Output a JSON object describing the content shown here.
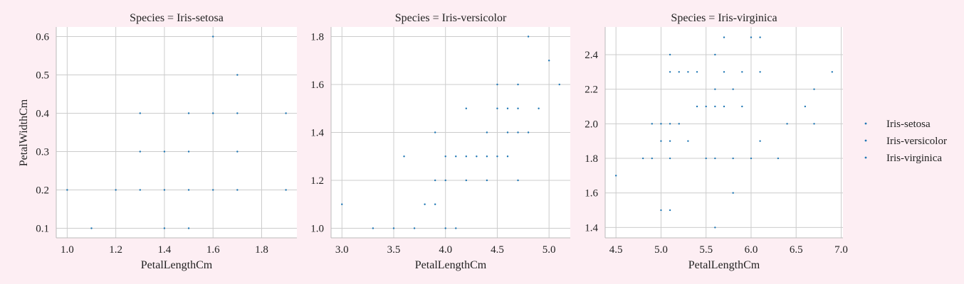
{
  "chart_data": {
    "type": "scatter",
    "facet_layout": "1x3",
    "grid": true,
    "legend_placement": "right",
    "ylabel": "PetalWidthCm",
    "legend": {
      "entries": [
        "Iris-setosa",
        "Iris-versicolor",
        "Iris-virginica"
      ],
      "colors": [
        "#1f77b4",
        "#1f77b4",
        "#1f77b4"
      ]
    },
    "colors": {
      "background": "#fdeef3",
      "plot_background": "#ffffff",
      "grid": "#cccccc",
      "point": "#1f77b4"
    },
    "panels": [
      {
        "title": "Species = Iris-setosa",
        "xlabel": "PetalLengthCm",
        "xlim": [
          0.955,
          1.945
        ],
        "ylim": [
          0.075,
          0.625
        ],
        "xticks": [
          "1.0",
          "1.2",
          "1.4",
          "1.6",
          "1.8"
        ],
        "yticks": [
          "0.1",
          "0.2",
          "0.3",
          "0.4",
          "0.5",
          "0.6"
        ],
        "points": [
          [
            1.0,
            0.2
          ],
          [
            1.1,
            0.1
          ],
          [
            1.2,
            0.2
          ],
          [
            1.3,
            0.2
          ],
          [
            1.3,
            0.3
          ],
          [
            1.3,
            0.4
          ],
          [
            1.4,
            0.1
          ],
          [
            1.4,
            0.2
          ],
          [
            1.4,
            0.3
          ],
          [
            1.5,
            0.1
          ],
          [
            1.5,
            0.2
          ],
          [
            1.5,
            0.3
          ],
          [
            1.5,
            0.4
          ],
          [
            1.6,
            0.2
          ],
          [
            1.6,
            0.4
          ],
          [
            1.6,
            0.6
          ],
          [
            1.7,
            0.2
          ],
          [
            1.7,
            0.3
          ],
          [
            1.7,
            0.4
          ],
          [
            1.7,
            0.5
          ],
          [
            1.9,
            0.2
          ],
          [
            1.9,
            0.4
          ]
        ]
      },
      {
        "title": "Species = Iris-versicolor",
        "xlabel": "PetalLengthCm",
        "xlim": [
          2.895,
          5.205
        ],
        "ylim": [
          0.96,
          1.84
        ],
        "xticks": [
          "3.0",
          "3.5",
          "4.0",
          "4.5",
          "5.0"
        ],
        "yticks": [
          "1.0",
          "1.2",
          "1.4",
          "1.6",
          "1.8"
        ],
        "points": [
          [
            3.0,
            1.1
          ],
          [
            3.3,
            1.0
          ],
          [
            3.5,
            1.0
          ],
          [
            3.6,
            1.3
          ],
          [
            3.7,
            1.0
          ],
          [
            3.8,
            1.1
          ],
          [
            3.9,
            1.1
          ],
          [
            3.9,
            1.2
          ],
          [
            3.9,
            1.4
          ],
          [
            4.0,
            1.0
          ],
          [
            4.0,
            1.2
          ],
          [
            4.0,
            1.3
          ],
          [
            4.1,
            1.0
          ],
          [
            4.1,
            1.3
          ],
          [
            4.2,
            1.2
          ],
          [
            4.2,
            1.3
          ],
          [
            4.2,
            1.5
          ],
          [
            4.3,
            1.3
          ],
          [
            4.4,
            1.2
          ],
          [
            4.4,
            1.3
          ],
          [
            4.4,
            1.4
          ],
          [
            4.5,
            1.3
          ],
          [
            4.5,
            1.5
          ],
          [
            4.5,
            1.6
          ],
          [
            4.6,
            1.3
          ],
          [
            4.6,
            1.4
          ],
          [
            4.6,
            1.5
          ],
          [
            4.7,
            1.2
          ],
          [
            4.7,
            1.4
          ],
          [
            4.7,
            1.5
          ],
          [
            4.7,
            1.6
          ],
          [
            4.8,
            1.4
          ],
          [
            4.8,
            1.8
          ],
          [
            4.9,
            1.5
          ],
          [
            5.0,
            1.7
          ],
          [
            5.1,
            1.6
          ]
        ]
      },
      {
        "title": "Species = Iris-virginica",
        "xlabel": "PetalLengthCm",
        "xlim": [
          4.38,
          7.02
        ],
        "ylim": [
          1.34,
          2.56
        ],
        "xticks": [
          "4.5",
          "5.0",
          "5.5",
          "6.0",
          "6.5",
          "7.0"
        ],
        "yticks": [
          "1.4",
          "1.6",
          "1.8",
          "2.0",
          "2.2",
          "2.4"
        ],
        "points": [
          [
            4.5,
            1.7
          ],
          [
            4.8,
            1.8
          ],
          [
            4.9,
            1.8
          ],
          [
            4.9,
            2.0
          ],
          [
            5.0,
            1.5
          ],
          [
            5.0,
            1.9
          ],
          [
            5.0,
            2.0
          ],
          [
            5.1,
            1.5
          ],
          [
            5.1,
            1.8
          ],
          [
            5.1,
            1.9
          ],
          [
            5.1,
            2.0
          ],
          [
            5.1,
            2.3
          ],
          [
            5.1,
            2.4
          ],
          [
            5.2,
            2.0
          ],
          [
            5.2,
            2.3
          ],
          [
            5.3,
            1.9
          ],
          [
            5.3,
            2.3
          ],
          [
            5.4,
            2.1
          ],
          [
            5.4,
            2.3
          ],
          [
            5.5,
            1.8
          ],
          [
            5.5,
            2.1
          ],
          [
            5.6,
            1.4
          ],
          [
            5.6,
            1.8
          ],
          [
            5.6,
            2.1
          ],
          [
            5.6,
            2.2
          ],
          [
            5.6,
            2.4
          ],
          [
            5.7,
            2.1
          ],
          [
            5.7,
            2.3
          ],
          [
            5.7,
            2.5
          ],
          [
            5.8,
            1.6
          ],
          [
            5.8,
            1.8
          ],
          [
            5.8,
            2.2
          ],
          [
            5.9,
            2.1
          ],
          [
            5.9,
            2.3
          ],
          [
            6.0,
            1.8
          ],
          [
            6.0,
            2.5
          ],
          [
            6.1,
            1.9
          ],
          [
            6.1,
            2.3
          ],
          [
            6.1,
            2.5
          ],
          [
            6.3,
            1.8
          ],
          [
            6.4,
            2.0
          ],
          [
            6.6,
            2.1
          ],
          [
            6.7,
            2.0
          ],
          [
            6.7,
            2.2
          ],
          [
            6.9,
            2.3
          ]
        ]
      }
    ]
  }
}
